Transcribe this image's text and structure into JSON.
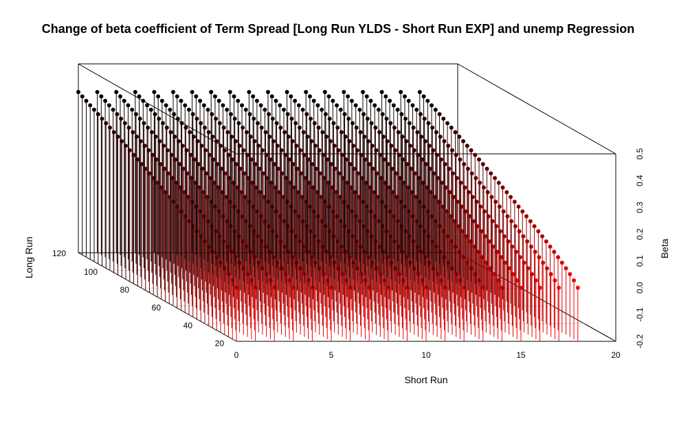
{
  "chart_data": {
    "type": "scatter",
    "subtype": "3d-scatter-with-drop-lines",
    "title": "Change of beta coefficient of Term Spread [Long Run YLDS - Short Run EXP] and unemp Regression",
    "xlabel": "Short Run",
    "ylabel": "Long Run",
    "zlabel": "Beta",
    "xlim": [
      0,
      20
    ],
    "ylim": [
      20,
      120
    ],
    "zlim": [
      -0.2,
      0.5
    ],
    "x_ticks": [
      "0",
      "5",
      "10",
      "15",
      "20"
    ],
    "y_ticks": [
      "20",
      "40",
      "60",
      "80",
      "100",
      "120"
    ],
    "z_ticks": [
      "-0.2",
      "-0.1",
      "0.0",
      "0.1",
      "0.2",
      "0.3",
      "0.4",
      "0.5"
    ],
    "grid": true,
    "color_low": "#ff0000",
    "color_high": "#000000",
    "short_run_values": [
      0,
      1,
      2,
      3,
      4,
      5,
      6,
      7,
      8,
      9,
      10,
      11,
      12,
      13,
      14,
      15,
      16,
      17,
      18
    ],
    "long_run_range": [
      20,
      120
    ],
    "beta_at_long_run_120": 0.4,
    "beta_at_long_run_20": 0.0
  }
}
